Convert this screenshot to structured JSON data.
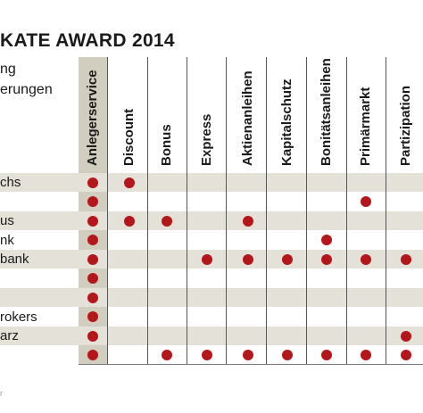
{
  "header": {
    "title": "KATE AWARD 2014",
    "subtitle_lines": [
      "ng",
      "erungen"
    ]
  },
  "colors": {
    "dot": "#b3161b",
    "row_shade": "#e4e1d8",
    "column_highlight": "#d2cebf",
    "grid_line": "#555555"
  },
  "chart_data": {
    "type": "table",
    "title": "KATE AWARD 2014",
    "columns": [
      "Anlegerservice",
      "Discount",
      "Bonus",
      "Express",
      "Aktienanleihen",
      "Kapitalschutz",
      "Bonitätsanleihen",
      "Primärmarkt",
      "Partizipation"
    ],
    "rows": [
      "chs",
      "",
      "us",
      "nk",
      "bank",
      "",
      "",
      "rokers",
      "arz",
      ""
    ],
    "marks": [
      [
        1,
        1,
        0,
        0,
        0,
        0,
        0,
        0,
        0
      ],
      [
        1,
        0,
        0,
        0,
        0,
        0,
        0,
        1,
        0
      ],
      [
        1,
        1,
        1,
        0,
        1,
        0,
        0,
        0,
        0
      ],
      [
        1,
        0,
        0,
        0,
        0,
        0,
        1,
        0,
        0
      ],
      [
        1,
        0,
        0,
        1,
        1,
        1,
        1,
        1,
        1
      ],
      [
        1,
        0,
        0,
        0,
        0,
        0,
        0,
        0,
        0
      ],
      [
        1,
        0,
        0,
        0,
        0,
        0,
        0,
        0,
        0
      ],
      [
        1,
        0,
        0,
        0,
        0,
        0,
        0,
        0,
        0
      ],
      [
        1,
        0,
        0,
        0,
        0,
        0,
        0,
        0,
        1
      ],
      [
        1,
        0,
        1,
        1,
        1,
        1,
        1,
        1,
        1
      ]
    ],
    "shaded_rows": [
      0,
      2,
      4,
      6,
      8
    ],
    "highlighted_column": 0
  },
  "footer": {
    "mark": "r"
  }
}
